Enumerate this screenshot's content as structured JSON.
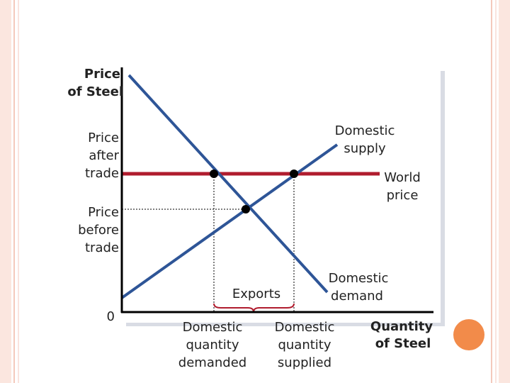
{
  "y_axis_label": [
    "Price",
    "of Steel"
  ],
  "x_axis_label": [
    "Quantity",
    "of Steel"
  ],
  "origin": "0",
  "price_after_trade": [
    "Price",
    "after",
    "trade"
  ],
  "price_before_trade": [
    "Price",
    "before",
    "trade"
  ],
  "domestic_supply": [
    "Domestic",
    "supply"
  ],
  "world_price": [
    "World",
    "price"
  ],
  "domestic_demand": [
    "Domestic",
    "demand"
  ],
  "exports": "Exports",
  "quantity_demanded": [
    "Domestic",
    "quantity",
    "demanded"
  ],
  "quantity_supplied": [
    "Domestic",
    "quantity",
    "supplied"
  ]
}
